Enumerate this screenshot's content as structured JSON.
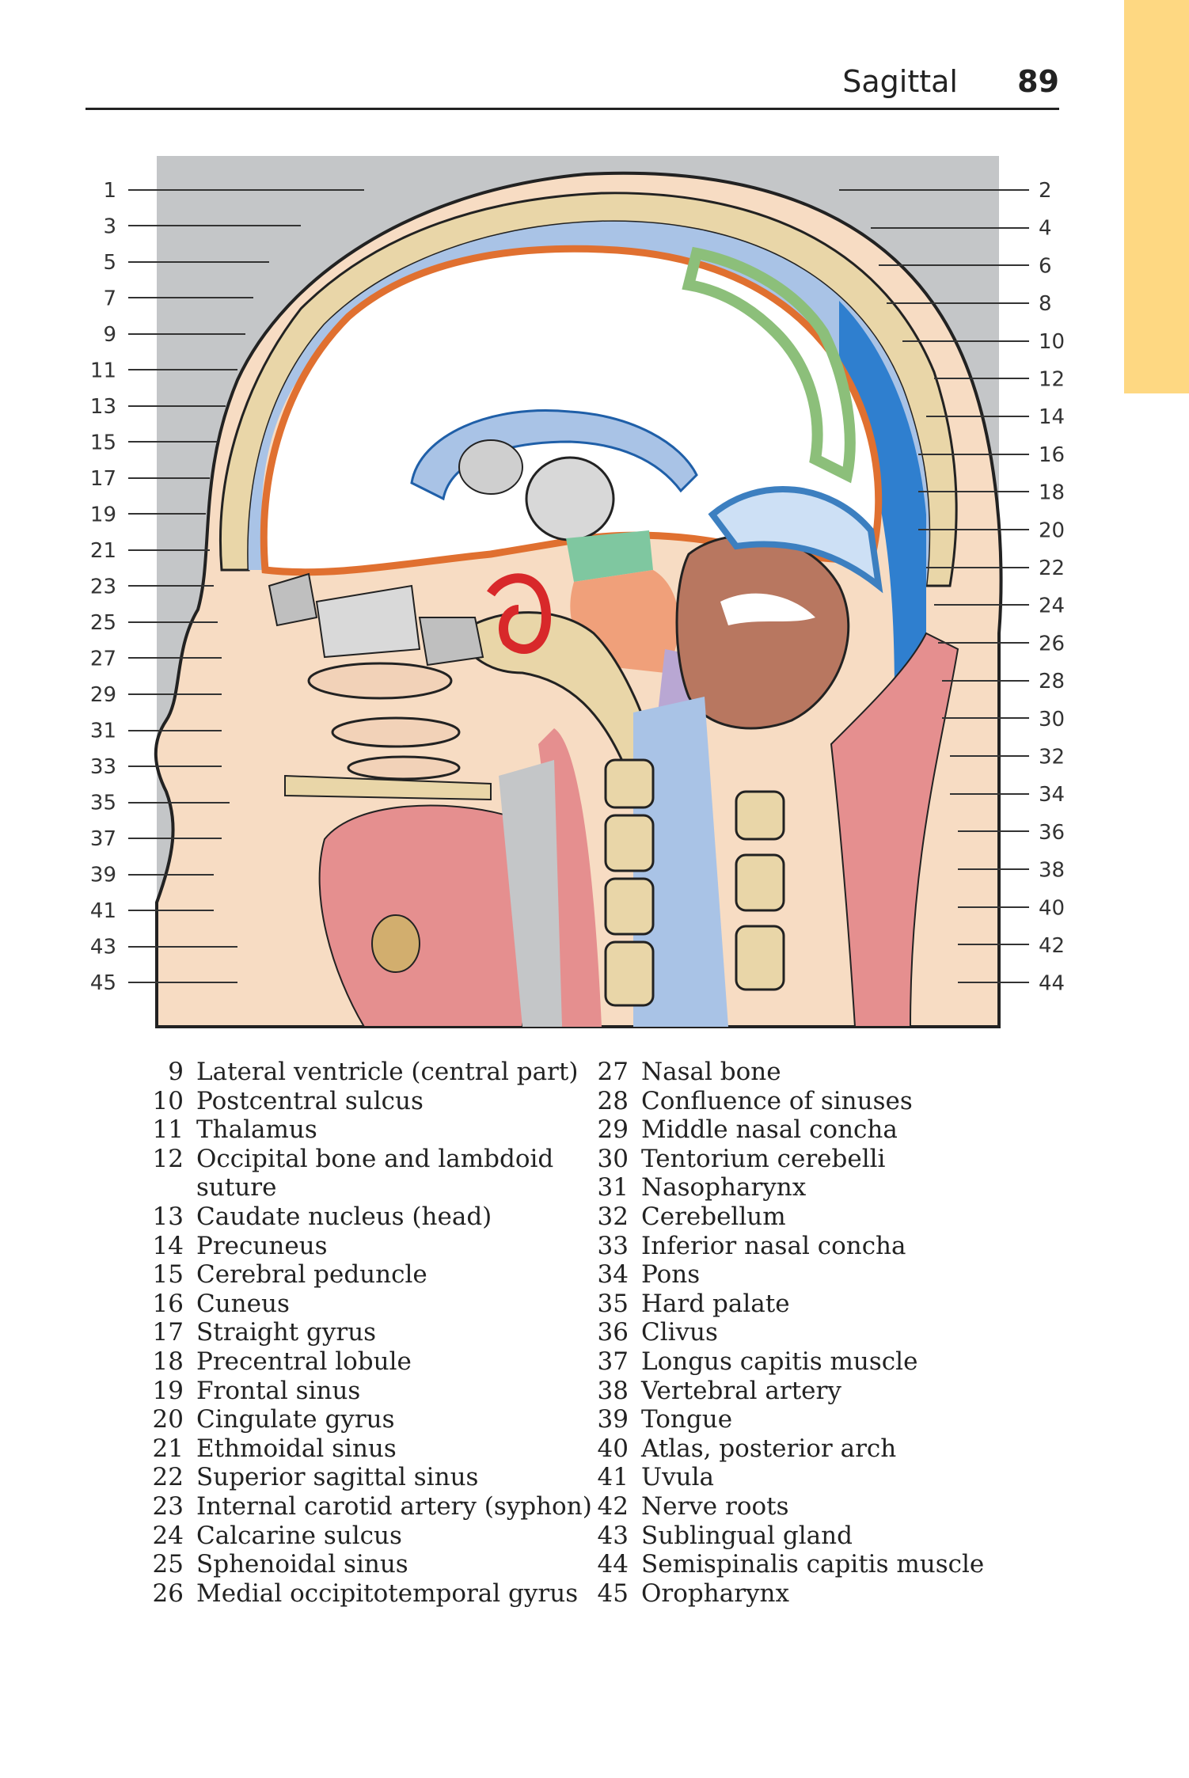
{
  "header": {
    "section": "Sagittal",
    "page_number": "89"
  },
  "figure": {
    "left_numbers": [
      "1",
      "3",
      "5",
      "7",
      "9",
      "11",
      "13",
      "15",
      "17",
      "19",
      "21",
      "23",
      "25",
      "27",
      "29",
      "31",
      "33",
      "35",
      "37",
      "39",
      "41",
      "43",
      "45"
    ],
    "right_numbers": [
      "2",
      "4",
      "6",
      "8",
      "10",
      "12",
      "14",
      "16",
      "18",
      "20",
      "22",
      "24",
      "26",
      "28",
      "30",
      "32",
      "34",
      "36",
      "38",
      "40",
      "42",
      "44"
    ]
  },
  "legend": {
    "left": [
      {
        "num": "9",
        "text": "Lateral ventricle (central part)"
      },
      {
        "num": "10",
        "text": "Postcentral sulcus"
      },
      {
        "num": "11",
        "text": "Thalamus"
      },
      {
        "num": "12",
        "text": "Occipital bone and lambdoid suture"
      },
      {
        "num": "13",
        "text": "Caudate nucleus (head)"
      },
      {
        "num": "14",
        "text": "Precuneus"
      },
      {
        "num": "15",
        "text": "Cerebral peduncle"
      },
      {
        "num": "16",
        "text": "Cuneus"
      },
      {
        "num": "17",
        "text": "Straight gyrus"
      },
      {
        "num": "18",
        "text": "Precentral lobule"
      },
      {
        "num": "19",
        "text": "Frontal sinus"
      },
      {
        "num": "20",
        "text": "Cingulate gyrus"
      },
      {
        "num": "21",
        "text": "Ethmoidal sinus"
      },
      {
        "num": "22",
        "text": "Superior sagittal sinus"
      },
      {
        "num": "23",
        "text": "Internal carotid artery (syphon)"
      },
      {
        "num": "24",
        "text": "Calcarine sulcus"
      },
      {
        "num": "25",
        "text": "Sphenoidal sinus"
      },
      {
        "num": "26",
        "text": "Medial occipitotemporal gyrus"
      }
    ],
    "right": [
      {
        "num": "27",
        "text": "Nasal bone"
      },
      {
        "num": "28",
        "text": "Confluence of sinuses"
      },
      {
        "num": "29",
        "text": "Middle nasal concha"
      },
      {
        "num": "30",
        "text": "Tentorium cerebelli"
      },
      {
        "num": "31",
        "text": "Nasopharynx"
      },
      {
        "num": "32",
        "text": "Cerebellum"
      },
      {
        "num": "33",
        "text": "Inferior nasal concha"
      },
      {
        "num": "34",
        "text": "Pons"
      },
      {
        "num": "35",
        "text": "Hard palate"
      },
      {
        "num": "36",
        "text": "Clivus"
      },
      {
        "num": "37",
        "text": "Longus capitis muscle"
      },
      {
        "num": "38",
        "text": "Vertebral artery"
      },
      {
        "num": "39",
        "text": "Tongue"
      },
      {
        "num": "40",
        "text": "Atlas, posterior arch"
      },
      {
        "num": "41",
        "text": "Uvula"
      },
      {
        "num": "42",
        "text": "Nerve roots"
      },
      {
        "num": "43",
        "text": "Sublingual gland"
      },
      {
        "num": "44",
        "text": "Semispinalis capitis muscle"
      },
      {
        "num": "45",
        "text": "Oropharynx"
      }
    ]
  }
}
